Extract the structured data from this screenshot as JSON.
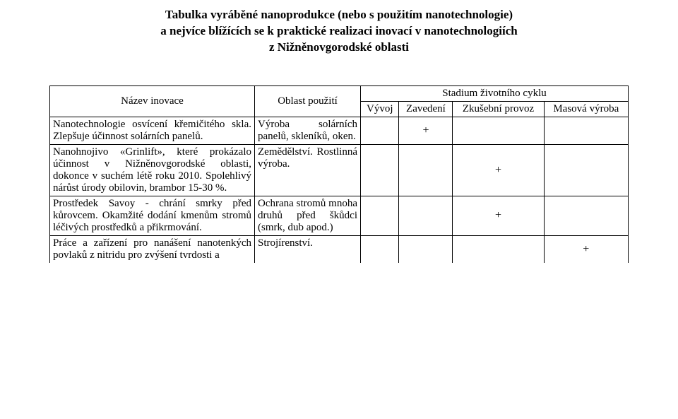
{
  "title": {
    "line1": "Tabulka vyráběné nanoprodukce (nebo s použitím nanotechnologie)",
    "line2": "a nejvíce blížících se k praktické realizaci inovací v nanotechnologiích",
    "line3": "z Nižněnovgorodské oblasti"
  },
  "headers": {
    "name": "Název inovace",
    "area": "Oblast použití",
    "stage": "Stadium životního cyklu",
    "dev": "Vývoj",
    "intro": "Zavedení",
    "trial": "Zkušební provoz",
    "mass": "Masová výroba"
  },
  "rows": [
    {
      "name": "Nanotechnologie osvícení křemičitého skla. Zlepšuje účinnost solárních panelů.",
      "area": "Výroba solárních panelů, skleníků, oken.",
      "dev": "",
      "intro": "+",
      "trial": "",
      "mass": ""
    },
    {
      "name": "Nanohnojivo «Grinlift», které prokázalo účinnost v Nižněnovgorodské oblasti, dokonce v suchém létě roku 2010. Spolehlivý nárůst úrody obilovin, brambor 15-30 %.",
      "area": "Zemědělství. Rostlinná výroba.",
      "dev": "",
      "intro": "",
      "trial": "+",
      "mass": ""
    },
    {
      "name": "Prostředek Savoy - chrání smrky před kůrovcem.\nOkamžité dodání kmenům stromů léčivých prostředků a přikrmování.",
      "area": "Ochrana stromů mnoha druhů před škůdci (smrk, dub apod.)",
      "dev": "",
      "intro": "",
      "trial": "+",
      "mass": ""
    },
    {
      "name": "Práce a zařízení pro nanášení nanotenkých povlaků z nitridu pro zvýšení tvrdosti a",
      "area": "Strojírenství.",
      "dev": "",
      "intro": "",
      "trial": "",
      "mass": "+"
    }
  ]
}
